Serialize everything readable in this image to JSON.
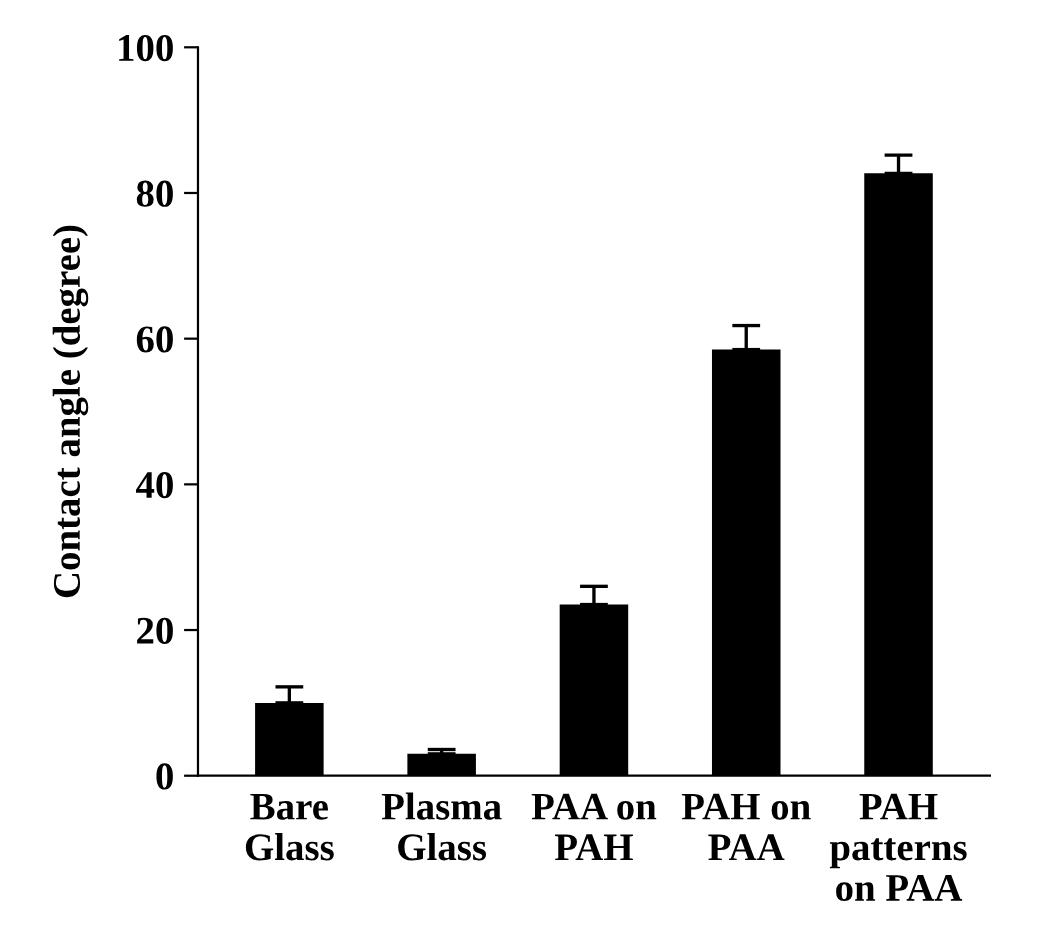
{
  "chart_data": {
    "type": "bar",
    "ylabel": "Contact angle (degree)",
    "categories": [
      "Bare\nGlass",
      "Plasma\nGlass",
      "PAA on\nPAH",
      "PAH on\nPAA",
      "PAH\npatterns\non PAA"
    ],
    "values": [
      10,
      3,
      23.5,
      58.5,
      82.7
    ],
    "errors": [
      [
        10,
        12.2
      ],
      [
        3,
        3.6
      ],
      [
        23.5,
        26
      ],
      [
        58.5,
        61.8
      ],
      [
        82.7,
        85.2
      ]
    ],
    "color": "#000000",
    "ylim": [
      0,
      100
    ],
    "yticks": [
      0,
      20,
      40,
      60,
      80,
      100
    ],
    "grid": false
  }
}
